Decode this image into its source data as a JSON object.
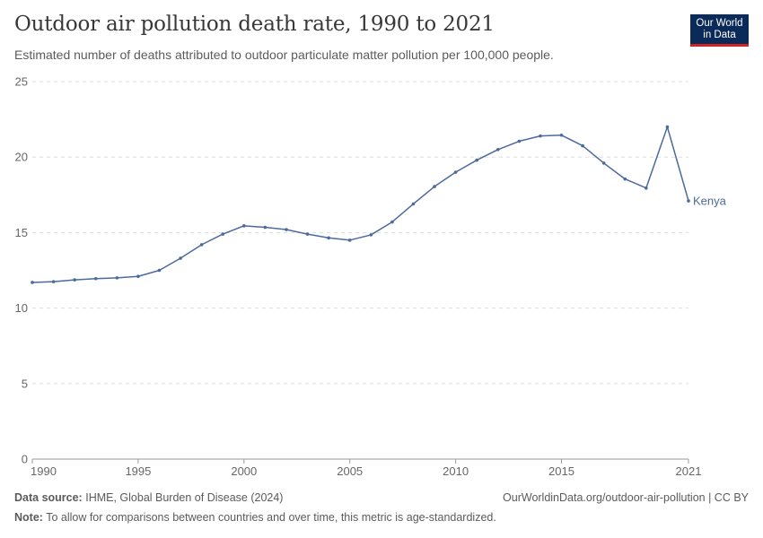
{
  "header": {
    "title": "Outdoor air pollution death rate, 1990 to 2021",
    "subtitle": "Estimated number of deaths attributed to outdoor particulate matter pollution per 100,000 people.",
    "logo_line1": "Our World",
    "logo_line2": "in Data",
    "logo_bg": "#0a2a5a",
    "logo_accent": "#ce261e"
  },
  "footer": {
    "source_label": "Data source:",
    "source_text": "IHME, Global Burden of Disease (2024)",
    "url_text": "OurWorldinData.org/outdoor-air-pollution | CC BY",
    "note_label": "Note:",
    "note_text": "To allow for comparisons between countries and over time, this metric is age-standardized."
  },
  "chart_data": {
    "type": "line",
    "title": "Outdoor air pollution death rate, 1990 to 2021",
    "subtitle": "Estimated number of deaths attributed to outdoor particulate matter pollution per 100,000 people.",
    "xlabel": "",
    "ylabel": "",
    "xlim": [
      1990,
      2021
    ],
    "ylim": [
      0,
      25
    ],
    "x_ticks": [
      1990,
      1995,
      2000,
      2005,
      2010,
      2015,
      2021
    ],
    "y_ticks": [
      0,
      5,
      10,
      15,
      20,
      25
    ],
    "grid": "horizontal-dashed",
    "series": [
      {
        "name": "Kenya",
        "color": "#4c6a9c",
        "x": [
          1990,
          1991,
          1992,
          1993,
          1994,
          1995,
          1996,
          1997,
          1998,
          1999,
          2000,
          2001,
          2002,
          2003,
          2004,
          2005,
          2006,
          2007,
          2008,
          2009,
          2010,
          2011,
          2012,
          2013,
          2014,
          2015,
          2016,
          2017,
          2018,
          2019,
          2020,
          2021
        ],
        "values": [
          11.7,
          11.75,
          11.87,
          11.95,
          12.0,
          12.1,
          12.5,
          13.3,
          14.2,
          14.9,
          15.45,
          15.35,
          15.2,
          14.9,
          14.65,
          14.5,
          14.85,
          15.7,
          16.9,
          18.05,
          19.0,
          19.8,
          20.5,
          21.05,
          21.4,
          21.45,
          20.75,
          19.6,
          18.55,
          17.95,
          22.0,
          17.1
        ]
      }
    ]
  }
}
